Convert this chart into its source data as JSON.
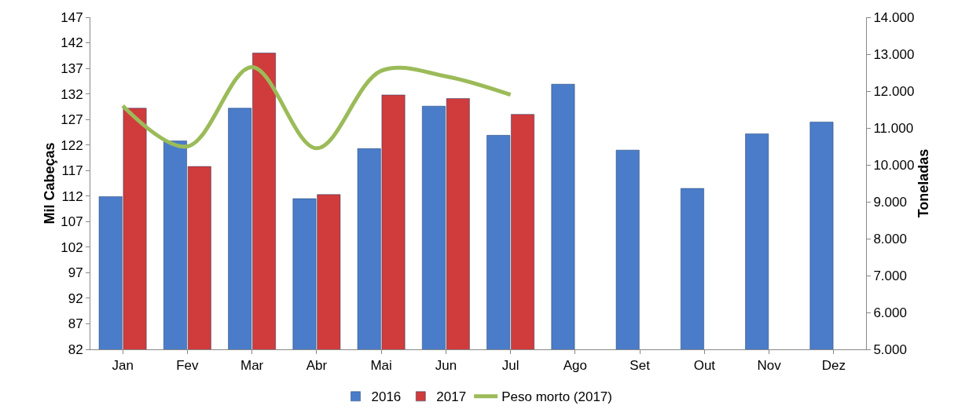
{
  "chart_data": {
    "type": "bar",
    "ylabel": "Mil Cabeças",
    "y2label": "Toneladas",
    "categories": [
      "Jan",
      "Fev",
      "Mar",
      "Abr",
      "Mai",
      "Jun",
      "Jul",
      "Ago",
      "Set",
      "Out",
      "Nov",
      "Dez"
    ],
    "series": [
      {
        "name": "2016",
        "color": "#4a7cc9",
        "values": [
          111.9,
          122.8,
          129.2,
          111.5,
          121.3,
          129.6,
          123.9,
          133.9,
          121.0,
          113.5,
          124.2,
          126.5
        ]
      },
      {
        "name": "2017",
        "color": "#d03b3b",
        "values": [
          129.2,
          117.8,
          140.0,
          112.3,
          131.8,
          131.1,
          128.0,
          null,
          null,
          null,
          null,
          null
        ]
      },
      {
        "name": "Peso morto (2017)",
        "type": "line",
        "axis": "y2",
        "color": "#9bbb59",
        "values": [
          11600,
          10500,
          12650,
          10450,
          12550,
          12400,
          11900,
          null,
          null,
          null,
          null,
          null
        ]
      }
    ],
    "ylim": [
      82,
      147
    ],
    "yticks": [
      82,
      87,
      92,
      97,
      102,
      107,
      112,
      117,
      122,
      127,
      132,
      137,
      142,
      147
    ],
    "y2lim": [
      5000,
      14000
    ],
    "y2ticks": [
      {
        "value": 5000,
        "label": "5.000"
      },
      {
        "value": 6000,
        "label": "6.000"
      },
      {
        "value": 7000,
        "label": "7.000"
      },
      {
        "value": 8000,
        "label": "8.000"
      },
      {
        "value": 9000,
        "label": "9.000"
      },
      {
        "value": 10000,
        "label": "10.000"
      },
      {
        "value": 11000,
        "label": "11.000"
      },
      {
        "value": 12000,
        "label": "12.000"
      },
      {
        "value": 13000,
        "label": "13.000"
      },
      {
        "value": 14000,
        "label": "14.000"
      }
    ],
    "grid": false,
    "legend": "bottom",
    "marker": "none",
    "line_style": "solid"
  }
}
